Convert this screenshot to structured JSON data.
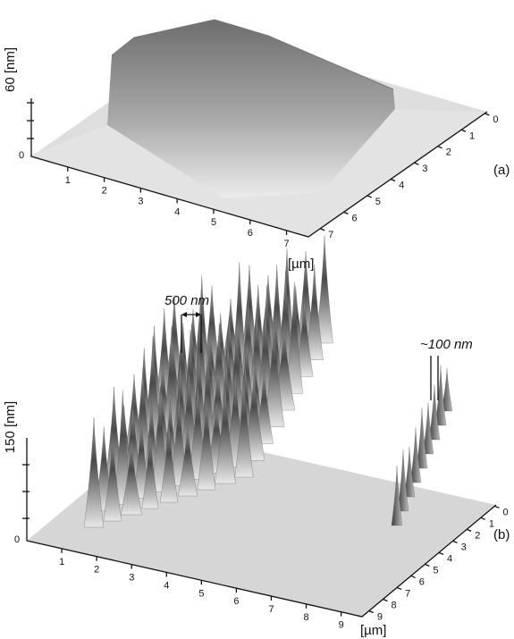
{
  "panels": [
    {
      "label": "(a)",
      "z_axis_label": "60 [nm]",
      "z_ticks": [
        0
      ],
      "x_ticks": [
        1,
        2,
        3,
        4,
        5,
        6,
        7
      ],
      "y_ticks": [
        0,
        1,
        2,
        3,
        4,
        5,
        6,
        7
      ],
      "unit_label": "[µm]"
    },
    {
      "label": "(b)",
      "z_axis_label": "150 [nm]",
      "z_ticks": [
        0
      ],
      "x_ticks": [
        1,
        2,
        3,
        4,
        5,
        6,
        7,
        8,
        9
      ],
      "y_ticks": [
        0,
        1,
        2,
        3,
        4,
        5,
        6,
        7,
        8,
        9
      ],
      "unit_label": "[µm]",
      "annotations": [
        "500 nm",
        "~100 nm"
      ]
    }
  ]
}
